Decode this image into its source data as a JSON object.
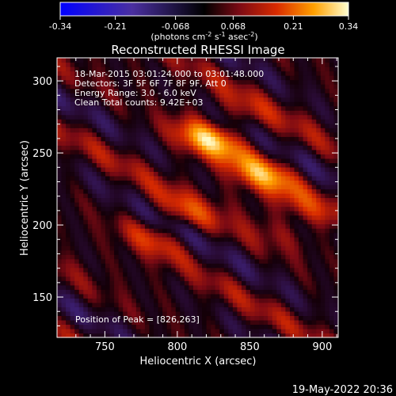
{
  "chart_data": {
    "type": "heatmap",
    "title": "Reconstructed RHESSI Image",
    "xlabel": "Heliocentric X (arcsec)",
    "ylabel": "Heliocentric Y (arcsec)",
    "xlim": [
      717,
      911
    ],
    "ylim": [
      122,
      316
    ],
    "xticks": [
      "750",
      "800",
      "850",
      "900"
    ],
    "xtick_values": [
      750,
      800,
      850,
      900
    ],
    "yticks": [
      "150",
      "200",
      "250",
      "300"
    ],
    "ytick_values": [
      150,
      200,
      250,
      300
    ],
    "colorbar": {
      "range": [
        -0.34,
        0.34
      ],
      "ticks": [
        "-0.34",
        "-0.21",
        "-0.068",
        "0.068",
        "0.21",
        "0.34"
      ],
      "tick_values": [
        -0.34,
        -0.21,
        -0.068,
        0.068,
        0.21,
        0.34
      ],
      "unit_prefix": "(photons cm",
      "unit_sup1": "-2",
      "unit_mid": " s",
      "unit_sup2": "-1",
      "unit_mid2": " asec",
      "unit_sup3": "-2",
      "unit_suffix": ")"
    },
    "annotations": [
      "18-Mar-2015 03:01:24.000 to 03:01:48.000",
      "Detectors: 3F 5F 6F 7F 8F 9F, Att 0",
      "Energy Range: 3.0 - 6.0 keV",
      "Clean     Total counts: 9.42E+03"
    ],
    "peak_label": "Position of Peak = [826,263]",
    "peak": [
      826,
      263
    ],
    "sources": [
      {
        "x": 826,
        "y": 263,
        "peak": 0.34
      },
      {
        "x": 858,
        "y": 235,
        "peak": 0.25
      },
      {
        "x": 795,
        "y": 200,
        "peak": 0.22
      },
      {
        "x": 880,
        "y": 205,
        "peak": 0.15
      }
    ]
  },
  "footer": {
    "date": "19-May-2022 20:36"
  }
}
